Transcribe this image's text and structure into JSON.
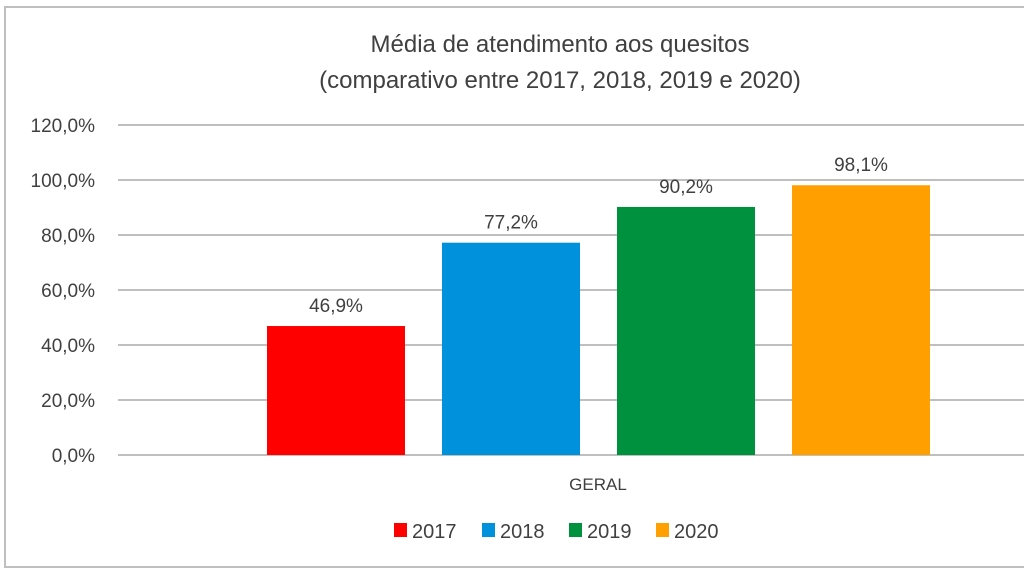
{
  "chart_data": {
    "type": "bar",
    "title": [
      "Média de atendimento aos quesitos",
      "(comparativo entre 2017, 2018, 2019 e 2020)"
    ],
    "categories": [
      "GERAL"
    ],
    "series": [
      {
        "name": "2017",
        "values": [
          46.9
        ],
        "label": "46,9%",
        "color": "#ff0000"
      },
      {
        "name": "2018",
        "values": [
          77.2
        ],
        "label": "77,2%",
        "color": "#0091dd"
      },
      {
        "name": "2019",
        "values": [
          90.2
        ],
        "label": "90,2%",
        "color": "#00913f"
      },
      {
        "name": "2020",
        "values": [
          98.1
        ],
        "label": "98,1%",
        "color": "#ffa000"
      }
    ],
    "yticks": [
      0,
      20,
      40,
      60,
      80,
      100,
      120
    ],
    "ytick_labels": [
      "0,0%",
      "20,0%",
      "40,0%",
      "60,0%",
      "80,0%",
      "100,0%",
      "120,0%"
    ],
    "ylim": [
      0,
      120
    ],
    "xlabel": "",
    "ylabel": "",
    "grid": true,
    "legend": "bottom"
  }
}
